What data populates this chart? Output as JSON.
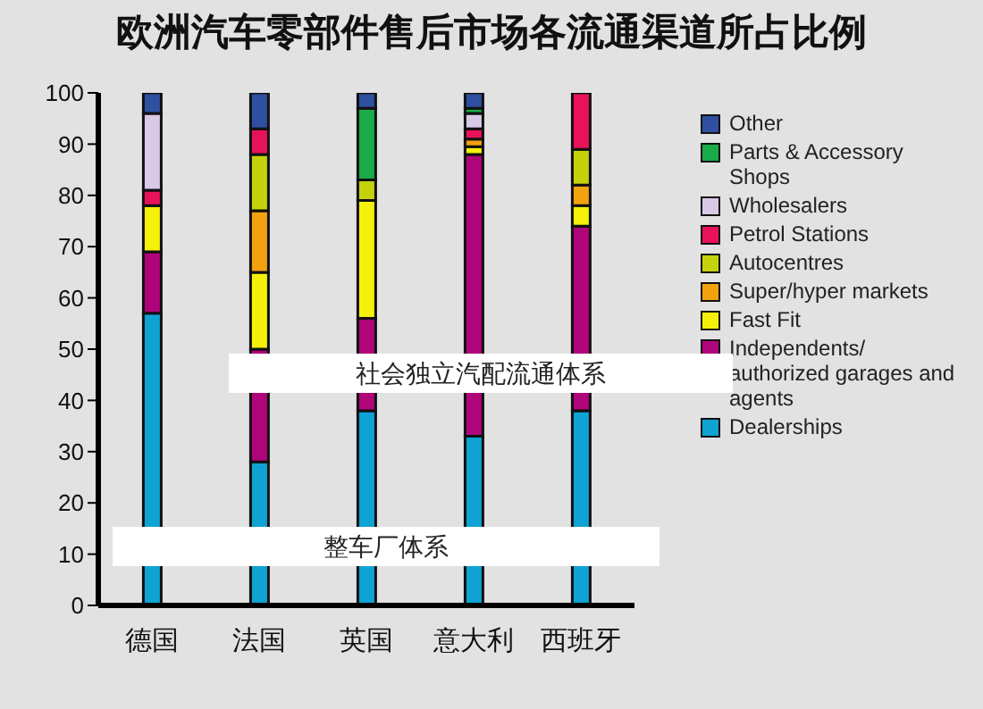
{
  "chart_data": {
    "type": "bar",
    "title": "欧洲汽车零部件售后市场各流通渠道所占比例",
    "stacked": true,
    "categories": [
      "德国",
      "法国",
      "英国",
      "意大利",
      "西班牙"
    ],
    "series": [
      {
        "name": "Dealerships",
        "color": "#0fa3d3",
        "values": [
          57,
          28,
          38,
          33,
          38
        ]
      },
      {
        "name": "Independents/ authorized garages and agents",
        "color": "#b0047a",
        "values": [
          12,
          22,
          18,
          55,
          36
        ]
      },
      {
        "name": "Fast Fit",
        "color": "#f5f00a",
        "values": [
          9,
          15,
          23,
          1.5,
          4
        ]
      },
      {
        "name": "Super/hyper markets",
        "color": "#f2a20f",
        "values": [
          0,
          12,
          0,
          1.5,
          4
        ]
      },
      {
        "name": "Autocentres",
        "color": "#c4d20c",
        "values": [
          0,
          11,
          4,
          0,
          7
        ]
      },
      {
        "name": "Petrol Stations",
        "color": "#e8125a",
        "values": [
          3,
          5,
          0,
          2,
          11
        ]
      },
      {
        "name": "Wholesalers",
        "color": "#d9c8e6",
        "values": [
          15,
          0,
          0,
          3,
          0
        ]
      },
      {
        "name": "Parts & Accessory Shops",
        "color": "#1aac48",
        "values": [
          0,
          0,
          14,
          1,
          0
        ]
      },
      {
        "name": "Other",
        "color": "#2f4fa0",
        "values": [
          4,
          7,
          3,
          3,
          0
        ]
      }
    ],
    "ylim": [
      0,
      100
    ],
    "yticks": [
      0,
      10,
      20,
      30,
      40,
      50,
      60,
      70,
      80,
      90,
      100
    ],
    "grid": false,
    "legend": "right",
    "annotations": [
      "社会独立汽配流通体系",
      "整车厂体系"
    ]
  }
}
